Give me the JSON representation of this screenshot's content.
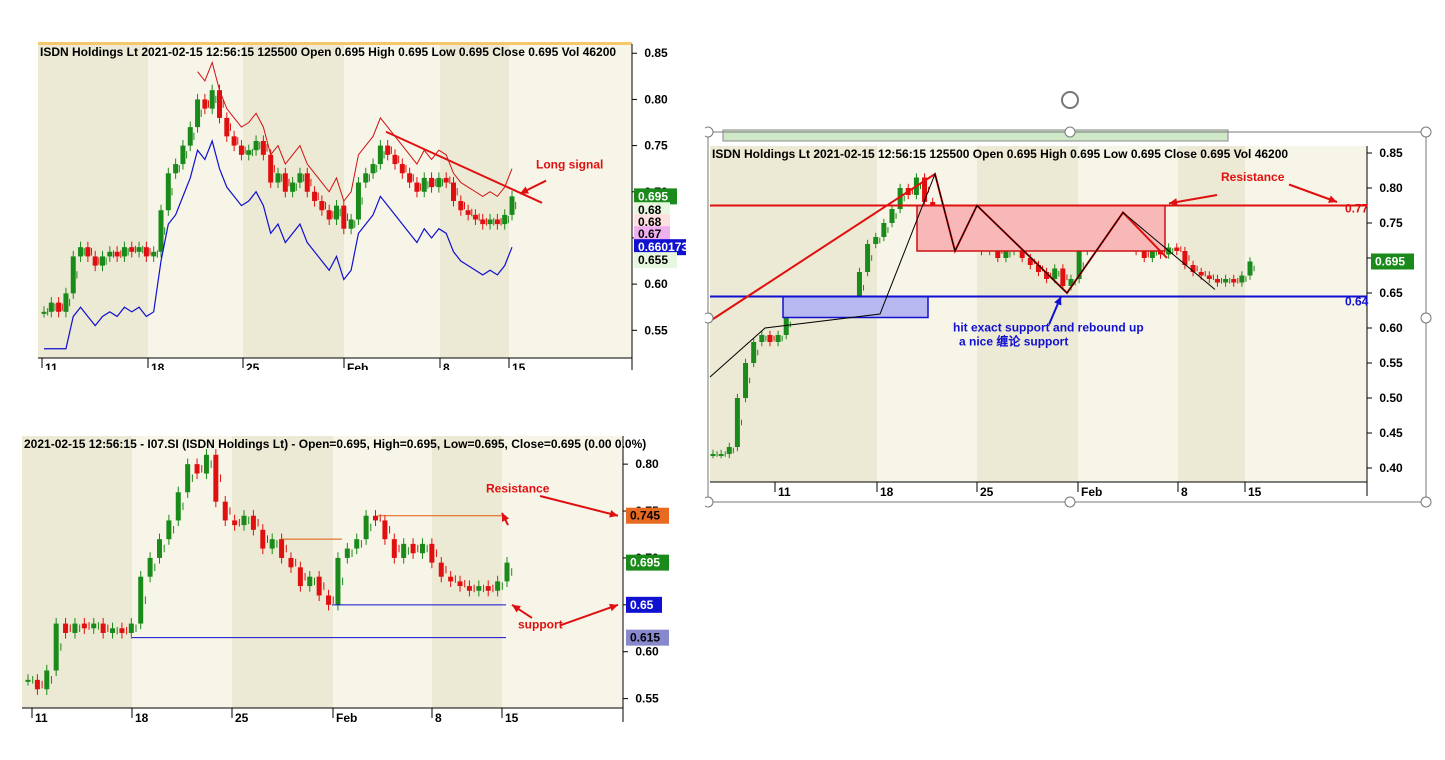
{
  "chart_data": [
    {
      "type": "candlestick",
      "title": "ISDN Holdings Lt   2021-02-15 12:56:15   125500  Open 0.695  High 0.695  Low 0.695  Close 0.695  Vol 46200",
      "x_ticks": [
        "11",
        "18",
        "25",
        "Feb",
        "8",
        "15"
      ],
      "y_ticks": [
        "0.85",
        "0.80",
        "0.75",
        "0.70",
        "0.65",
        "0.60",
        "0.55"
      ],
      "ylim": [
        0.52,
        0.86
      ],
      "price_path": [
        0.57,
        0.58,
        0.57,
        0.59,
        0.63,
        0.64,
        0.63,
        0.62,
        0.63,
        0.635,
        0.63,
        0.64,
        0.635,
        0.64,
        0.63,
        0.635,
        0.68,
        0.72,
        0.73,
        0.75,
        0.77,
        0.8,
        0.79,
        0.81,
        0.78,
        0.76,
        0.75,
        0.74,
        0.745,
        0.755,
        0.74,
        0.71,
        0.72,
        0.7,
        0.71,
        0.72,
        0.7,
        0.69,
        0.68,
        0.67,
        0.685,
        0.66,
        0.67,
        0.71,
        0.72,
        0.73,
        0.75,
        0.74,
        0.73,
        0.72,
        0.71,
        0.7,
        0.715,
        0.705,
        0.715,
        0.71,
        0.69,
        0.68,
        0.675,
        0.67,
        0.665,
        0.67,
        0.665,
        0.675,
        0.695
      ],
      "badges": [
        "0.695",
        "0.68",
        "0.68",
        "0.67",
        "0.660173",
        "0.655"
      ],
      "annotations": [
        "Long signal"
      ]
    },
    {
      "type": "candlestick",
      "title": "2021-02-15 12:56:15 - I07.SI (ISDN Holdings Lt) -  Open=0.695, High=0.695, Low=0.695, Close=0.695 (0.00 0.0%)",
      "x_ticks": [
        "11",
        "18",
        "25",
        "Feb",
        "8",
        "15"
      ],
      "y_ticks": [
        "0.80",
        "0.75",
        "0.70",
        "0.65",
        "0.60",
        "0.55"
      ],
      "ylim": [
        0.54,
        0.83
      ],
      "price_path": [
        0.57,
        0.56,
        0.58,
        0.63,
        0.62,
        0.63,
        0.625,
        0.63,
        0.62,
        0.625,
        0.62,
        0.63,
        0.68,
        0.7,
        0.72,
        0.74,
        0.77,
        0.8,
        0.79,
        0.81,
        0.76,
        0.74,
        0.735,
        0.745,
        0.73,
        0.71,
        0.72,
        0.7,
        0.69,
        0.67,
        0.68,
        0.66,
        0.65,
        0.7,
        0.71,
        0.72,
        0.745,
        0.74,
        0.72,
        0.7,
        0.715,
        0.705,
        0.715,
        0.695,
        0.68,
        0.675,
        0.67,
        0.665,
        0.67,
        0.665,
        0.675,
        0.695
      ],
      "badges": [
        "0.745",
        "0.695",
        "0.65",
        "0.615"
      ],
      "annotations": [
        "Resistance",
        "support"
      ]
    },
    {
      "type": "candlestick",
      "title": "ISDN Holdings Lt   2021-02-15 12:56:15   125500  Open 0.695  High 0.695  Low 0.695  Close 0.695  Vol 46200",
      "x_ticks": [
        "11",
        "18",
        "25",
        "Feb",
        "8",
        "15"
      ],
      "y_ticks": [
        "0.85",
        "0.80",
        "0.75",
        "0.70",
        "0.65",
        "0.60",
        "0.55",
        "0.50",
        "0.45",
        "0.40"
      ],
      "ylim": [
        0.38,
        0.86
      ],
      "price_path": [
        0.42,
        0.42,
        0.43,
        0.5,
        0.55,
        0.58,
        0.59,
        0.58,
        0.59,
        0.62,
        0.63,
        0.64,
        0.63,
        0.635,
        0.63,
        0.64,
        0.63,
        0.635,
        0.68,
        0.72,
        0.73,
        0.75,
        0.77,
        0.8,
        0.79,
        0.815,
        0.78,
        0.76,
        0.75,
        0.74,
        0.745,
        0.755,
        0.74,
        0.71,
        0.72,
        0.7,
        0.71,
        0.72,
        0.7,
        0.69,
        0.68,
        0.67,
        0.685,
        0.66,
        0.67,
        0.71,
        0.72,
        0.73,
        0.75,
        0.74,
        0.73,
        0.72,
        0.71,
        0.7,
        0.715,
        0.705,
        0.715,
        0.71,
        0.69,
        0.68,
        0.675,
        0.67,
        0.665,
        0.67,
        0.665,
        0.675,
        0.695
      ],
      "badges": [
        "0.695"
      ],
      "level_labels": [
        "0.77",
        "0.64"
      ],
      "annotations": [
        "Resistance",
        "hit exact support and rebound up",
        "a nice 缠论 support"
      ]
    }
  ]
}
